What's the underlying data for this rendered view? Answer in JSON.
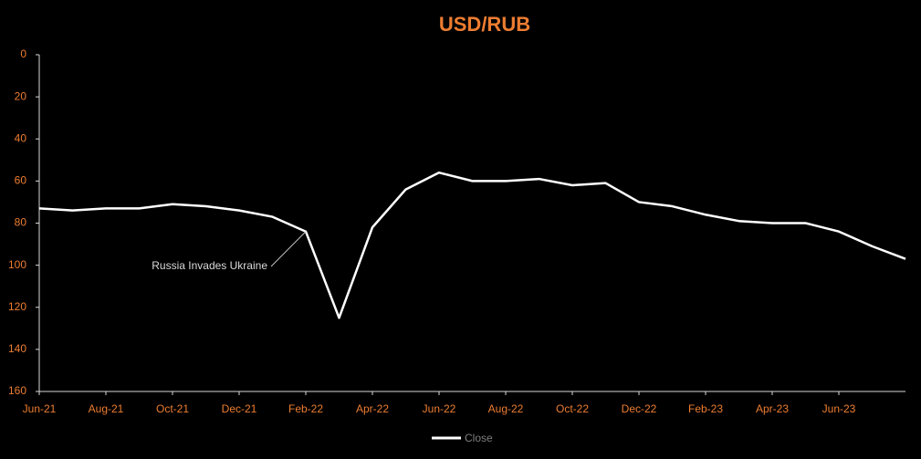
{
  "chart_data": {
    "type": "line",
    "title": "USD/RUB",
    "x": [
      "2021-06",
      "2021-07",
      "2021-08",
      "2021-09",
      "2021-10",
      "2021-11",
      "2021-12",
      "2022-01",
      "2022-02",
      "2022-03",
      "2022-04",
      "2022-05",
      "2022-06",
      "2022-07",
      "2022-08",
      "2022-09",
      "2022-10",
      "2022-11",
      "2022-12",
      "2023-01",
      "2023-02",
      "2023-03",
      "2023-04",
      "2023-05",
      "2023-06",
      "2023-07",
      "2023-08"
    ],
    "series": [
      {
        "name": "Close",
        "color": "#ffffff",
        "values": [
          73,
          74,
          73,
          73,
          71,
          72,
          74,
          77,
          84,
          125,
          82,
          64,
          56,
          60,
          60,
          59,
          62,
          61,
          70,
          72,
          76,
          79,
          80,
          80,
          84,
          91,
          97
        ]
      }
    ],
    "xlim": [
      "2021-06",
      "2023-08"
    ],
    "xticks": [
      {
        "value": "2021-06",
        "label": "Jun-21"
      },
      {
        "value": "2021-08",
        "label": "Aug-21"
      },
      {
        "value": "2021-10",
        "label": "Oct-21"
      },
      {
        "value": "2021-12",
        "label": "Dec-21"
      },
      {
        "value": "2022-02",
        "label": "Feb-22"
      },
      {
        "value": "2022-04",
        "label": "Apr-22"
      },
      {
        "value": "2022-06",
        "label": "Jun-22"
      },
      {
        "value": "2022-08",
        "label": "Aug-22"
      },
      {
        "value": "2022-10",
        "label": "Oct-22"
      },
      {
        "value": "2022-12",
        "label": "Dec-22"
      },
      {
        "value": "2023-02",
        "label": "Feb-23"
      },
      {
        "value": "2023-04",
        "label": "Apr-23"
      },
      {
        "value": "2023-06",
        "label": "Jun-23"
      }
    ],
    "ylim": [
      0,
      160
    ],
    "yticks": [
      0,
      20,
      40,
      60,
      80,
      100,
      120,
      140,
      160
    ],
    "y_inverted": true,
    "grid": false,
    "legend": "bottom",
    "annotations": [
      {
        "text": "Russia Invades Ukraine",
        "x": "2022-02"
      }
    ]
  }
}
